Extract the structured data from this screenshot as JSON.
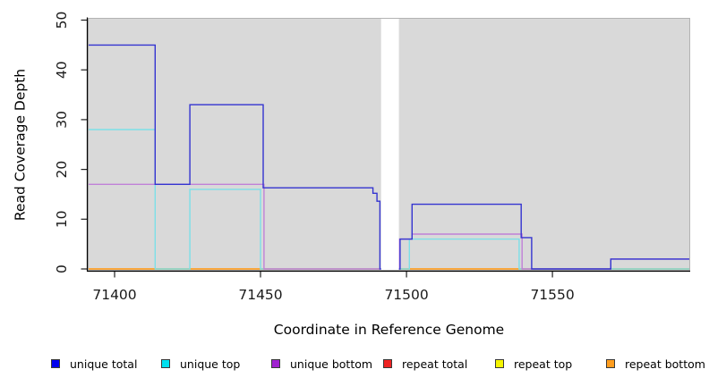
{
  "figure": {
    "xlabel": "Coordinate in Reference Genome",
    "ylabel": "Read Coverage Depth"
  },
  "chart_data": {
    "type": "line",
    "subtype": "step-coverage",
    "title": "",
    "xlabel": "Coordinate in Reference Genome",
    "ylabel": "Read Coverage Depth",
    "xlim": [
      71390.8,
      71597.2
    ],
    "ylim": [
      -0.36,
      50.45
    ],
    "xticks": [
      71400,
      71450,
      71500,
      71550
    ],
    "xtick_labels": [
      "71400",
      "71450",
      "71500",
      "71550"
    ],
    "yticks": [
      0,
      10,
      20,
      30,
      40,
      50
    ],
    "ytick_labels": [
      "0",
      "10",
      "20",
      "30",
      "40",
      "50"
    ],
    "grid": false,
    "plot_background": "#d9d9d9",
    "plot_border_color": "#b3b3b3",
    "axis_color": "#000000",
    "tick_label_color": "#1a1a1a",
    "gap_region": {
      "x_start": 71491.3,
      "x_end": 71497.4,
      "color": "#ffffff"
    },
    "series": [
      {
        "id": "repeat-total",
        "name": "repeat total",
        "color": "#e05a78",
        "points": [
          [
            71390.8,
            0
          ],
          [
            71597.2,
            0
          ]
        ]
      },
      {
        "id": "repeat-top",
        "name": "repeat top",
        "color": "#e8e84a",
        "points": [
          [
            71390.8,
            0
          ],
          [
            71597.2,
            0
          ]
        ]
      },
      {
        "id": "repeat-bottom",
        "name": "repeat bottom",
        "color": "#ff9d28",
        "points": [
          [
            71390.8,
            0
          ],
          [
            71597.2,
            0
          ]
        ]
      },
      {
        "id": "unique-top",
        "name": "unique top",
        "color": "#7cdfe8",
        "points": [
          [
            71390.8,
            28
          ],
          [
            71413.9,
            28
          ],
          [
            71413.9,
            0
          ],
          [
            71425.8,
            0
          ],
          [
            71425.8,
            16
          ],
          [
            71450,
            16
          ],
          [
            71450,
            0
          ],
          [
            71501,
            0
          ],
          [
            71501,
            6
          ],
          [
            71538.6,
            6
          ],
          [
            71538.6,
            0
          ],
          [
            71597.2,
            0
          ]
        ]
      },
      {
        "id": "unique-bottom",
        "name": "unique bottom",
        "color": "#c080d8",
        "points": [
          [
            71390.8,
            17
          ],
          [
            71451.2,
            17
          ],
          [
            71451.2,
            0
          ],
          [
            71497.6,
            0
          ],
          [
            71497.6,
            6
          ],
          [
            71501.9,
            6
          ],
          [
            71501.9,
            7
          ],
          [
            71539.6,
            7
          ],
          [
            71539.6,
            0
          ],
          [
            71570,
            0
          ],
          [
            71570,
            2
          ],
          [
            71597.2,
            2
          ]
        ]
      },
      {
        "id": "unique-total",
        "name": "unique total",
        "color": "#3434d0",
        "points": [
          [
            71390.8,
            45
          ],
          [
            71413.9,
            45
          ],
          [
            71413.9,
            17
          ],
          [
            71425.8,
            17
          ],
          [
            71425.8,
            33
          ],
          [
            71450.9,
            33
          ],
          [
            71450.9,
            16.3
          ],
          [
            71488.5,
            16.3
          ],
          [
            71488.5,
            15.2
          ],
          [
            71489.9,
            15.2
          ],
          [
            71489.9,
            13.6
          ],
          [
            71490.9,
            13.6
          ],
          [
            71490.9,
            0
          ],
          [
            71497.8,
            0
          ],
          [
            71497.8,
            6
          ],
          [
            71501.9,
            6
          ],
          [
            71501.9,
            13
          ],
          [
            71539.3,
            13
          ],
          [
            71539.3,
            6.3
          ],
          [
            71542.9,
            6.3
          ],
          [
            71542.9,
            0
          ],
          [
            71570,
            0
          ],
          [
            71570,
            2
          ],
          [
            71597.2,
            2
          ]
        ]
      }
    ],
    "legend": {
      "position": "bottom",
      "items": [
        {
          "label": "unique total",
          "color": "#0000ee"
        },
        {
          "label": "unique top",
          "color": "#00e0ee"
        },
        {
          "label": "unique bottom",
          "color": "#a021d0"
        },
        {
          "label": "repeat total",
          "color": "#ee2222"
        },
        {
          "label": "repeat top",
          "color": "#f5f500"
        },
        {
          "label": "repeat bottom",
          "color": "#ff9d1e"
        }
      ]
    }
  }
}
